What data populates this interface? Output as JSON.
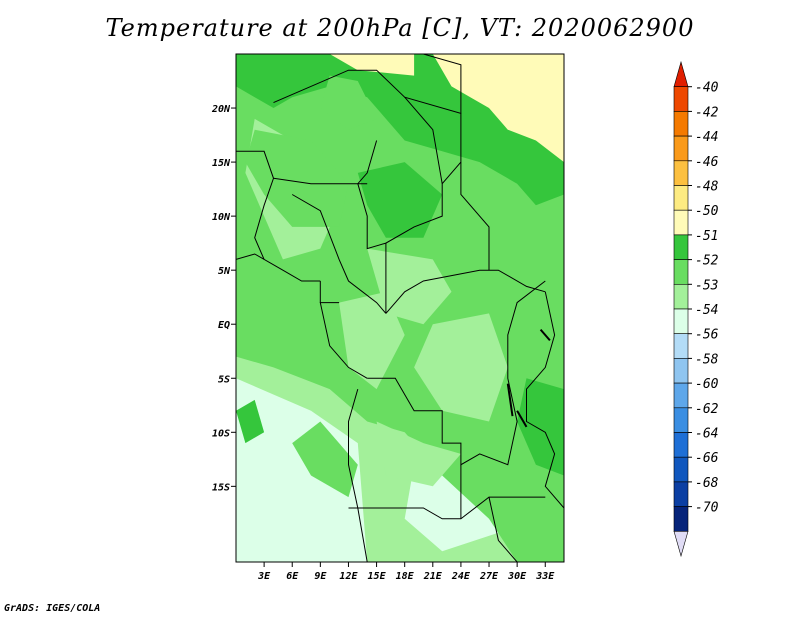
{
  "title": "Temperature at 200hPa [C], VT: 2020062900",
  "credit": "GrADS: IGES/COLA",
  "chart_data": {
    "type": "heatmap",
    "variable": "Temperature at 200hPa",
    "units": "C",
    "valid_time": "2020062900",
    "xlim": [
      0,
      35
    ],
    "ylim": [
      -22,
      25
    ],
    "x_ticks": [
      {
        "value": 3,
        "label": "3E"
      },
      {
        "value": 6,
        "label": "6E"
      },
      {
        "value": 9,
        "label": "9E"
      },
      {
        "value": 12,
        "label": "12E"
      },
      {
        "value": 15,
        "label": "15E"
      },
      {
        "value": 18,
        "label": "18E"
      },
      {
        "value": 21,
        "label": "21E"
      },
      {
        "value": 24,
        "label": "24E"
      },
      {
        "value": 27,
        "label": "27E"
      },
      {
        "value": 30,
        "label": "30E"
      },
      {
        "value": 33,
        "label": "33E"
      }
    ],
    "y_ticks": [
      {
        "value": 20,
        "label": "20N"
      },
      {
        "value": 15,
        "label": "15N"
      },
      {
        "value": 10,
        "label": "10N"
      },
      {
        "value": 5,
        "label": "5N"
      },
      {
        "value": 0,
        "label": "EQ"
      },
      {
        "value": -5,
        "label": "5S"
      },
      {
        "value": -10,
        "label": "10S"
      },
      {
        "value": -15,
        "label": "15S"
      }
    ],
    "colorbar": {
      "labels": [
        "-40",
        "-42",
        "-44",
        "-46",
        "-48",
        "-50",
        "-51",
        "-52",
        "-53",
        "-54",
        "-56",
        "-58",
        "-60",
        "-62",
        "-64",
        "-66",
        "-68",
        "-70"
      ],
      "colors": [
        "#e01e00",
        "#ee4800",
        "#f57a00",
        "#fa9a1a",
        "#fcc040",
        "#fdeb82",
        "#fffbb8",
        "#35c63c",
        "#69dd61",
        "#a3f09a",
        "#dcffe8",
        "#b3dcf7",
        "#8fc5f0",
        "#5ea7ea",
        "#3a8ee2",
        "#1e6fd6",
        "#1057be",
        "#0b3fa3",
        "#06247a",
        "#e0dcf5"
      ]
    },
    "field_regions": [
      {
        "level": "-51",
        "area": "northeast corner, 22N-25N east of 22E"
      },
      {
        "level": "-52",
        "area": "northern band 15N-22N, 14E-33E"
      },
      {
        "level": "-53",
        "area": "central Africa 3S-15N"
      },
      {
        "level": "-54",
        "area": "southern and western regions"
      },
      {
        "level": "-56",
        "area": "southwest Atlantic/Angola coast patches"
      }
    ]
  }
}
